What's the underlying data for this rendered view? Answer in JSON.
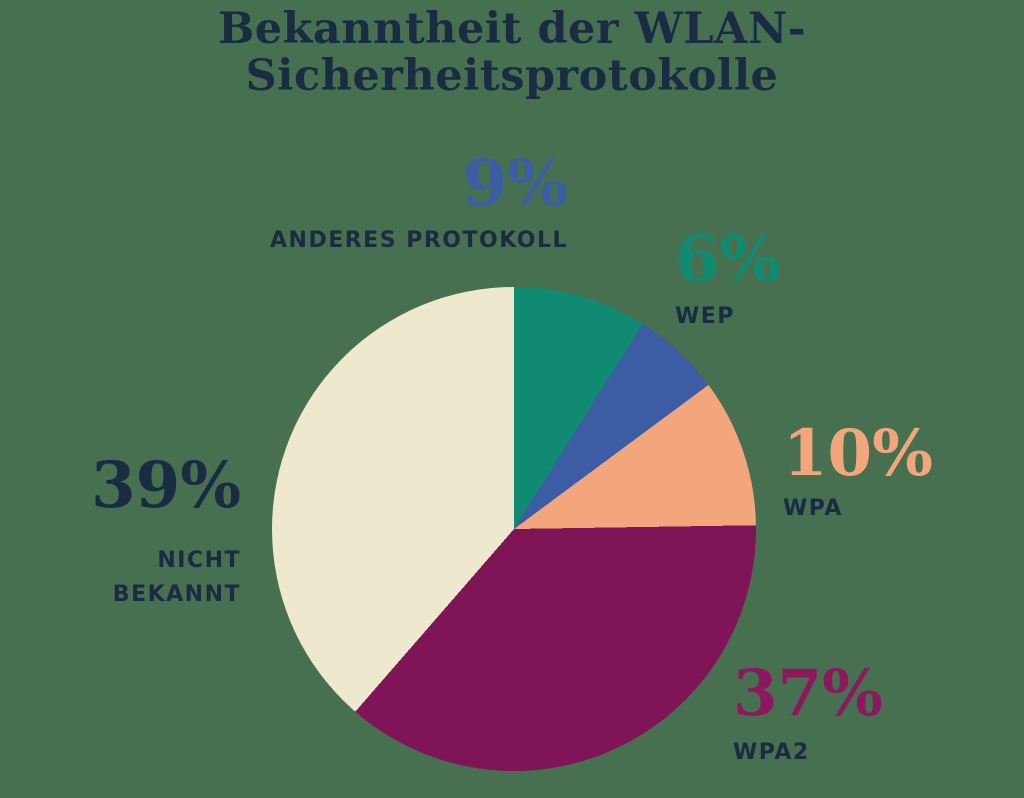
{
  "colors": {
    "background": "#477050",
    "text_navy": "#1A2C42"
  },
  "title": {
    "full": "Bekanntheit der WLAN-Sicherheitsprotokolle",
    "lines": [
      "Bekanntheit der WLAN-",
      "Sicherheitsprotokolle"
    ]
  },
  "chart_data": {
    "type": "pie",
    "title": "Bekanntheit der WLAN-Sicherheitsprotokolle",
    "start_angle_deg": 0,
    "direction": "clockwise",
    "legend_position": "around-pie",
    "slices": [
      {
        "id": "anderes_protokoll",
        "label": "ANDERES PROTOKOLL",
        "pct_display": "9%",
        "value": 9,
        "slice_color": "#108A70",
        "pct_color": "#3C5CA4"
      },
      {
        "id": "wep",
        "label": "WEP",
        "pct_display": "6%",
        "value": 6,
        "slice_color": "#3C5CA4",
        "pct_color": "#108A70"
      },
      {
        "id": "wpa",
        "label": "WPA",
        "pct_display": "10%",
        "value": 10,
        "slice_color": "#F3A67B",
        "pct_color": "#F3A67B"
      },
      {
        "id": "wpa2",
        "label": "WPA2",
        "pct_display": "37%",
        "value": 37,
        "slice_color": "#7F1457",
        "pct_color": "#8C195E"
      },
      {
        "id": "nicht_bekannt",
        "label": "NICHT BEKANNT",
        "label_lines": [
          "NICHT",
          "BEKANNT"
        ],
        "pct_display": "39%",
        "value": 39,
        "slice_color": "#EEE9CE",
        "pct_color": "#1A2C42"
      }
    ]
  }
}
